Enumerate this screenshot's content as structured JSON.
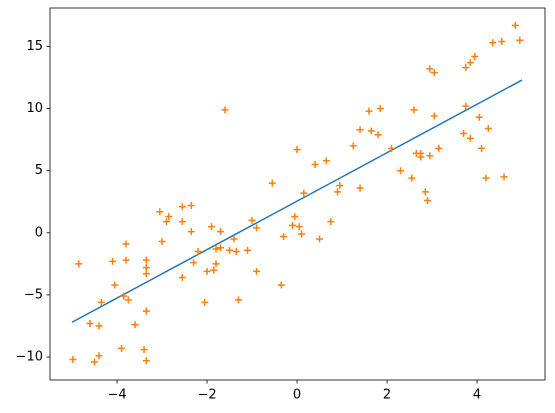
{
  "chart_data": {
    "type": "scatter",
    "xlim": [
      -5.49,
      5.51
    ],
    "ylim": [
      -11.85,
      18.1
    ],
    "xticks": [
      {
        "value": -4,
        "label": "−4"
      },
      {
        "value": -2,
        "label": "−2"
      },
      0,
      2,
      4
    ],
    "yticks": [
      {
        "value": -10,
        "label": "−10"
      },
      {
        "value": -5,
        "label": "−5"
      },
      0,
      5,
      10,
      15
    ],
    "grid": false,
    "series": [
      {
        "type": "line",
        "color": "#1f77b4",
        "x": [
          -5,
          5
        ],
        "values": [
          -7.2,
          12.3
        ]
      },
      {
        "type": "scatter",
        "marker": "+",
        "color": "#ff7f0e",
        "x": [
          -4.98,
          -4.85,
          -4.6,
          -4.5,
          -4.4,
          -4.4,
          -4.35,
          -4.1,
          -4.05,
          -3.9,
          -3.85,
          -3.8,
          -3.8,
          -3.75,
          -3.6,
          -3.4,
          -3.35,
          -3.35,
          -3.35,
          -3.35,
          -3.35,
          -3.05,
          -3.0,
          -2.9,
          -2.85,
          -2.55,
          -2.55,
          -2.55,
          -2.35,
          -2.35,
          -2.3,
          -2.2,
          -2.05,
          -2.0,
          -1.9,
          -1.85,
          -1.8,
          -1.8,
          -1.7,
          -1.7,
          -1.6,
          -1.5,
          -1.4,
          -1.35,
          -1.3,
          -1.1,
          -1.0,
          -0.9,
          -0.9,
          -0.55,
          -0.35,
          -0.3,
          -0.1,
          -0.05,
          0.0,
          0.05,
          0.1,
          0.15,
          0.4,
          0.5,
          0.65,
          0.75,
          0.9,
          0.95,
          1.25,
          1.4,
          1.4,
          1.6,
          1.65,
          1.8,
          1.85,
          2.1,
          2.3,
          2.55,
          2.6,
          2.65,
          2.75,
          2.75,
          2.85,
          2.9,
          2.95,
          2.95,
          3.05,
          3.05,
          3.15,
          3.7,
          3.75,
          3.75,
          3.85,
          3.85,
          3.95,
          4.05,
          4.1,
          4.2,
          4.25,
          4.35,
          4.55,
          4.6,
          4.85,
          4.95
        ],
        "values": [
          -10.2,
          -2.5,
          -7.3,
          -10.4,
          -7.5,
          -9.9,
          -5.6,
          -2.3,
          -4.2,
          -9.3,
          -5.1,
          -0.9,
          -2.2,
          -5.4,
          -7.4,
          -9.4,
          -10.3,
          -6.3,
          -2.2,
          -2.8,
          -3.3,
          1.7,
          -0.7,
          0.9,
          1.3,
          2.1,
          0.9,
          -3.6,
          2.2,
          0.1,
          -2.4,
          -1.5,
          -5.6,
          -3.1,
          0.5,
          -3.0,
          -1.3,
          -2.5,
          -1.2,
          0.1,
          9.9,
          -1.4,
          -0.5,
          -1.5,
          -5.4,
          -1.4,
          1.0,
          0.4,
          -3.1,
          4.0,
          -4.2,
          -0.3,
          0.6,
          1.3,
          6.7,
          0.5,
          -0.1,
          3.2,
          5.5,
          -0.5,
          5.8,
          0.9,
          3.3,
          3.8,
          7.0,
          8.3,
          3.6,
          9.8,
          8.2,
          7.9,
          10.0,
          6.8,
          5.0,
          4.4,
          9.9,
          6.4,
          6.1,
          6.4,
          3.3,
          2.6,
          13.2,
          6.2,
          12.9,
          9.4,
          6.8,
          8.0,
          13.3,
          10.2,
          7.6,
          13.7,
          14.2,
          9.3,
          6.8,
          4.4,
          8.4,
          15.3,
          15.4,
          4.5,
          16.7,
          15.5
        ]
      }
    ]
  }
}
